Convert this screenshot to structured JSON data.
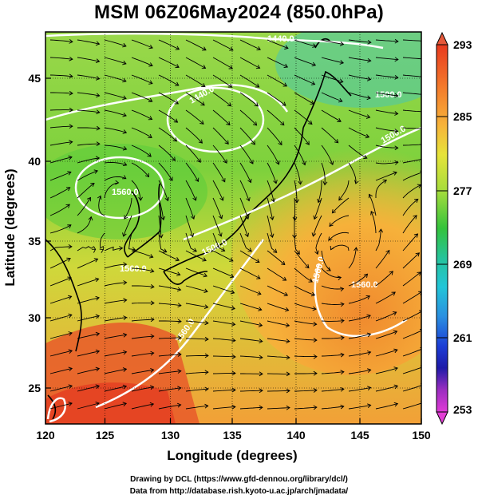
{
  "title": "MSM 06Z06May2024 (850.0hPa)",
  "axes": {
    "xlabel": "Longitude (degrees)",
    "ylabel": "Latitude  (degrees)",
    "x_ticks": [
      "120",
      "125",
      "130",
      "135",
      "140",
      "145",
      "150"
    ],
    "y_ticks": [
      "25",
      "30",
      "35",
      "40",
      "45"
    ]
  },
  "colorbar": {
    "labels": [
      "293",
      "285",
      "277",
      "269",
      "261",
      "253"
    ]
  },
  "contour_labels": [
    "1440.0",
    "1560.0",
    "1560.0",
    "1560.0",
    "1440.0",
    "1500.0",
    "1500.0",
    "1500.0",
    "1560.0",
    "1560.0"
  ],
  "credits": {
    "line1": "Drawing by DCL (https://www.gfd-dennou.org/library/dcl/)",
    "line2": "Data from http://database.rish.kyoto-u.ac.jp/arch/jmadata/"
  },
  "chart_data": {
    "type": "heatmap",
    "title": "MSM 06Z06May2024 (850.0hPa)",
    "xlabel": "Longitude (degrees)",
    "ylabel": "Latitude  (degrees)",
    "xlim": [
      120,
      150
    ],
    "ylim": [
      22.4,
      47.6
    ],
    "colorbar_range": [
      253,
      293
    ],
    "colorbar_ticks": [
      293,
      285,
      277,
      269,
      261,
      253
    ],
    "contours": "geopotential height (white), labelled 1440.0 / 1500.0 / 1560.0",
    "overlay": "wind streamlines (black)",
    "grid": true
  }
}
